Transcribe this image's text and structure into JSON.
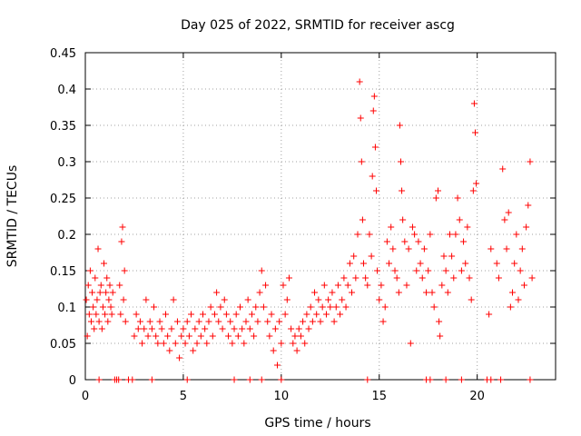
{
  "chart_data": {
    "type": "scatter",
    "title": "Day 025 of 2022, SRMTID for receiver ascg",
    "xlabel": "GPS time / hours",
    "ylabel": "SRMTID / TECUs",
    "xlim": [
      0,
      24
    ],
    "ylim": [
      0,
      0.45
    ],
    "xticks": [
      0,
      5,
      10,
      15,
      20
    ],
    "yticks": [
      0,
      0.05,
      0.1,
      0.15,
      0.2,
      0.25,
      0.3,
      0.35,
      0.4,
      0.45
    ],
    "xtick_labels": [
      "0",
      "5",
      "10",
      "15",
      "20"
    ],
    "ytick_labels": [
      "0",
      "0.05",
      "0.1",
      "0.15",
      "0.2",
      "0.25",
      "0.3",
      "0.35",
      "0.4",
      "0.45"
    ],
    "grid": true,
    "marker": "+",
    "color": "#ff0000",
    "series": [
      {
        "name": "SRMTID",
        "points": [
          [
            0.05,
            0.11
          ],
          [
            0.1,
            0.06
          ],
          [
            0.15,
            0.13
          ],
          [
            0.2,
            0.09
          ],
          [
            0.25,
            0.15
          ],
          [
            0.3,
            0.08
          ],
          [
            0.35,
            0.12
          ],
          [
            0.4,
            0.1
          ],
          [
            0.45,
            0.07
          ],
          [
            0.5,
            0.14
          ],
          [
            0.55,
            0.09
          ],
          [
            0.6,
            0.11
          ],
          [
            0.65,
            0.18
          ],
          [
            0.7,
            0.08
          ],
          [
            0.75,
            0.12
          ],
          [
            0.8,
            0.13
          ],
          [
            0.85,
            0.07
          ],
          [
            0.9,
            0.1
          ],
          [
            0.95,
            0.16
          ],
          [
            1.0,
            0.09
          ],
          [
            1.05,
            0.12
          ],
          [
            1.1,
            0.14
          ],
          [
            1.15,
            0.08
          ],
          [
            1.2,
            0.11
          ],
          [
            1.25,
            0.13
          ],
          [
            1.3,
            0.1
          ],
          [
            1.35,
            0.09
          ],
          [
            1.4,
            0.12
          ],
          [
            1.75,
            0.13
          ],
          [
            1.8,
            0.09
          ],
          [
            1.85,
            0.19
          ],
          [
            1.9,
            0.21
          ],
          [
            1.95,
            0.11
          ],
          [
            2.0,
            0.15
          ],
          [
            2.05,
            0.08
          ],
          [
            2.5,
            0.06
          ],
          [
            2.6,
            0.09
          ],
          [
            2.7,
            0.07
          ],
          [
            2.8,
            0.08
          ],
          [
            2.9,
            0.05
          ],
          [
            3.0,
            0.07
          ],
          [
            3.1,
            0.11
          ],
          [
            3.2,
            0.06
          ],
          [
            3.3,
            0.08
          ],
          [
            3.4,
            0.07
          ],
          [
            3.5,
            0.1
          ],
          [
            3.6,
            0.06
          ],
          [
            3.7,
            0.05
          ],
          [
            3.8,
            0.08
          ],
          [
            3.9,
            0.07
          ],
          [
            4.0,
            0.05
          ],
          [
            4.1,
            0.09
          ],
          [
            4.2,
            0.06
          ],
          [
            4.3,
            0.04
          ],
          [
            4.4,
            0.07
          ],
          [
            4.5,
            0.11
          ],
          [
            4.6,
            0.05
          ],
          [
            4.7,
            0.08
          ],
          [
            4.8,
            0.03
          ],
          [
            4.9,
            0.06
          ],
          [
            5.0,
            0.07
          ],
          [
            5.1,
            0.05
          ],
          [
            5.2,
            0.08
          ],
          [
            5.3,
            0.06
          ],
          [
            5.4,
            0.09
          ],
          [
            5.5,
            0.04
          ],
          [
            5.6,
            0.07
          ],
          [
            5.7,
            0.05
          ],
          [
            5.8,
            0.08
          ],
          [
            5.9,
            0.06
          ],
          [
            6.0,
            0.09
          ],
          [
            6.1,
            0.07
          ],
          [
            6.2,
            0.05
          ],
          [
            6.3,
            0.08
          ],
          [
            6.4,
            0.1
          ],
          [
            6.5,
            0.06
          ],
          [
            6.6,
            0.09
          ],
          [
            6.7,
            0.12
          ],
          [
            6.8,
            0.08
          ],
          [
            6.9,
            0.1
          ],
          [
            7.0,
            0.07
          ],
          [
            7.1,
            0.11
          ],
          [
            7.2,
            0.09
          ],
          [
            7.3,
            0.06
          ],
          [
            7.4,
            0.08
          ],
          [
            7.5,
            0.05
          ],
          [
            7.6,
            0.07
          ],
          [
            7.7,
            0.09
          ],
          [
            7.8,
            0.06
          ],
          [
            7.9,
            0.1
          ],
          [
            8.0,
            0.07
          ],
          [
            8.1,
            0.05
          ],
          [
            8.2,
            0.08
          ],
          [
            8.3,
            0.11
          ],
          [
            8.4,
            0.07
          ],
          [
            8.5,
            0.09
          ],
          [
            8.6,
            0.06
          ],
          [
            8.7,
            0.1
          ],
          [
            8.8,
            0.08
          ],
          [
            8.9,
            0.12
          ],
          [
            9.0,
            0.15
          ],
          [
            9.1,
            0.1
          ],
          [
            9.2,
            0.13
          ],
          [
            9.3,
            0.08
          ],
          [
            9.4,
            0.06
          ],
          [
            9.5,
            0.09
          ],
          [
            9.6,
            0.04
          ],
          [
            9.7,
            0.07
          ],
          [
            9.8,
            0.02
          ],
          [
            9.9,
            0.08
          ],
          [
            10.0,
            0.05
          ],
          [
            10.1,
            0.13
          ],
          [
            10.2,
            0.09
          ],
          [
            10.3,
            0.11
          ],
          [
            10.4,
            0.14
          ],
          [
            10.5,
            0.07
          ],
          [
            10.6,
            0.05
          ],
          [
            10.7,
            0.06
          ],
          [
            10.8,
            0.04
          ],
          [
            10.9,
            0.07
          ],
          [
            11.0,
            0.06
          ],
          [
            11.1,
            0.08
          ],
          [
            11.2,
            0.05
          ],
          [
            11.3,
            0.09
          ],
          [
            11.4,
            0.07
          ],
          [
            11.5,
            0.1
          ],
          [
            11.6,
            0.08
          ],
          [
            11.7,
            0.12
          ],
          [
            11.8,
            0.09
          ],
          [
            11.9,
            0.11
          ],
          [
            12.0,
            0.08
          ],
          [
            12.1,
            0.1
          ],
          [
            12.2,
            0.13
          ],
          [
            12.3,
            0.09
          ],
          [
            12.4,
            0.11
          ],
          [
            12.5,
            0.1
          ],
          [
            12.6,
            0.12
          ],
          [
            12.7,
            0.08
          ],
          [
            12.8,
            0.1
          ],
          [
            12.9,
            0.13
          ],
          [
            13.0,
            0.09
          ],
          [
            13.1,
            0.11
          ],
          [
            13.2,
            0.14
          ],
          [
            13.3,
            0.1
          ],
          [
            13.4,
            0.13
          ],
          [
            13.5,
            0.16
          ],
          [
            13.6,
            0.12
          ],
          [
            13.7,
            0.17
          ],
          [
            13.8,
            0.14
          ],
          [
            13.9,
            0.2
          ],
          [
            14.0,
            0.41
          ],
          [
            14.05,
            0.36
          ],
          [
            14.1,
            0.3
          ],
          [
            14.15,
            0.22
          ],
          [
            14.2,
            0.16
          ],
          [
            14.3,
            0.14
          ],
          [
            14.4,
            0.13
          ],
          [
            14.5,
            0.2
          ],
          [
            14.6,
            0.17
          ],
          [
            14.65,
            0.28
          ],
          [
            14.7,
            0.37
          ],
          [
            14.75,
            0.39
          ],
          [
            14.8,
            0.32
          ],
          [
            14.85,
            0.26
          ],
          [
            14.9,
            0.15
          ],
          [
            15.0,
            0.11
          ],
          [
            15.1,
            0.13
          ],
          [
            15.2,
            0.08
          ],
          [
            15.3,
            0.1
          ],
          [
            15.4,
            0.19
          ],
          [
            15.5,
            0.16
          ],
          [
            15.6,
            0.21
          ],
          [
            15.7,
            0.18
          ],
          [
            15.8,
            0.15
          ],
          [
            15.9,
            0.14
          ],
          [
            16.0,
            0.12
          ],
          [
            16.05,
            0.35
          ],
          [
            16.1,
            0.3
          ],
          [
            16.15,
            0.26
          ],
          [
            16.2,
            0.22
          ],
          [
            16.3,
            0.19
          ],
          [
            16.4,
            0.13
          ],
          [
            16.5,
            0.18
          ],
          [
            16.6,
            0.05
          ],
          [
            16.7,
            0.21
          ],
          [
            16.8,
            0.2
          ],
          [
            16.9,
            0.15
          ],
          [
            17.0,
            0.19
          ],
          [
            17.1,
            0.16
          ],
          [
            17.2,
            0.14
          ],
          [
            17.3,
            0.18
          ],
          [
            17.4,
            0.12
          ],
          [
            17.5,
            0.15
          ],
          [
            17.6,
            0.2
          ],
          [
            17.7,
            0.12
          ],
          [
            17.8,
            0.1
          ],
          [
            17.9,
            0.25
          ],
          [
            18.0,
            0.26
          ],
          [
            18.05,
            0.08
          ],
          [
            18.1,
            0.06
          ],
          [
            18.2,
            0.13
          ],
          [
            18.3,
            0.17
          ],
          [
            18.4,
            0.15
          ],
          [
            18.5,
            0.12
          ],
          [
            18.6,
            0.2
          ],
          [
            18.7,
            0.17
          ],
          [
            18.8,
            0.14
          ],
          [
            18.9,
            0.2
          ],
          [
            19.0,
            0.25
          ],
          [
            19.1,
            0.22
          ],
          [
            19.2,
            0.15
          ],
          [
            19.3,
            0.19
          ],
          [
            19.4,
            0.16
          ],
          [
            19.5,
            0.21
          ],
          [
            19.6,
            0.14
          ],
          [
            19.7,
            0.11
          ],
          [
            19.8,
            0.26
          ],
          [
            19.85,
            0.38
          ],
          [
            19.9,
            0.34
          ],
          [
            19.95,
            0.27
          ],
          [
            20.6,
            0.09
          ],
          [
            20.7,
            0.18
          ],
          [
            21.0,
            0.16
          ],
          [
            21.1,
            0.14
          ],
          [
            21.3,
            0.29
          ],
          [
            21.4,
            0.22
          ],
          [
            21.5,
            0.18
          ],
          [
            21.6,
            0.23
          ],
          [
            21.7,
            0.1
          ],
          [
            21.8,
            0.12
          ],
          [
            21.9,
            0.16
          ],
          [
            22.0,
            0.2
          ],
          [
            22.1,
            0.11
          ],
          [
            22.2,
            0.15
          ],
          [
            22.3,
            0.18
          ],
          [
            22.4,
            0.13
          ],
          [
            22.5,
            0.21
          ],
          [
            22.6,
            0.24
          ],
          [
            22.7,
            0.3
          ],
          [
            22.8,
            0.14
          ],
          [
            0.7,
            0.0
          ],
          [
            1.5,
            0.0
          ],
          [
            1.6,
            0.0
          ],
          [
            1.7,
            0.0
          ],
          [
            2.2,
            0.0
          ],
          [
            2.4,
            0.0
          ],
          [
            3.4,
            0.0
          ],
          [
            5.2,
            0.0
          ],
          [
            7.6,
            0.0
          ],
          [
            8.4,
            0.0
          ],
          [
            9.0,
            0.0
          ],
          [
            10.0,
            0.0
          ],
          [
            14.4,
            0.0
          ],
          [
            17.4,
            0.0
          ],
          [
            17.6,
            0.0
          ],
          [
            18.4,
            0.0
          ],
          [
            19.2,
            0.0
          ],
          [
            20.5,
            0.0
          ],
          [
            20.7,
            0.0
          ],
          [
            21.2,
            0.0
          ],
          [
            22.7,
            0.0
          ]
        ]
      }
    ]
  }
}
